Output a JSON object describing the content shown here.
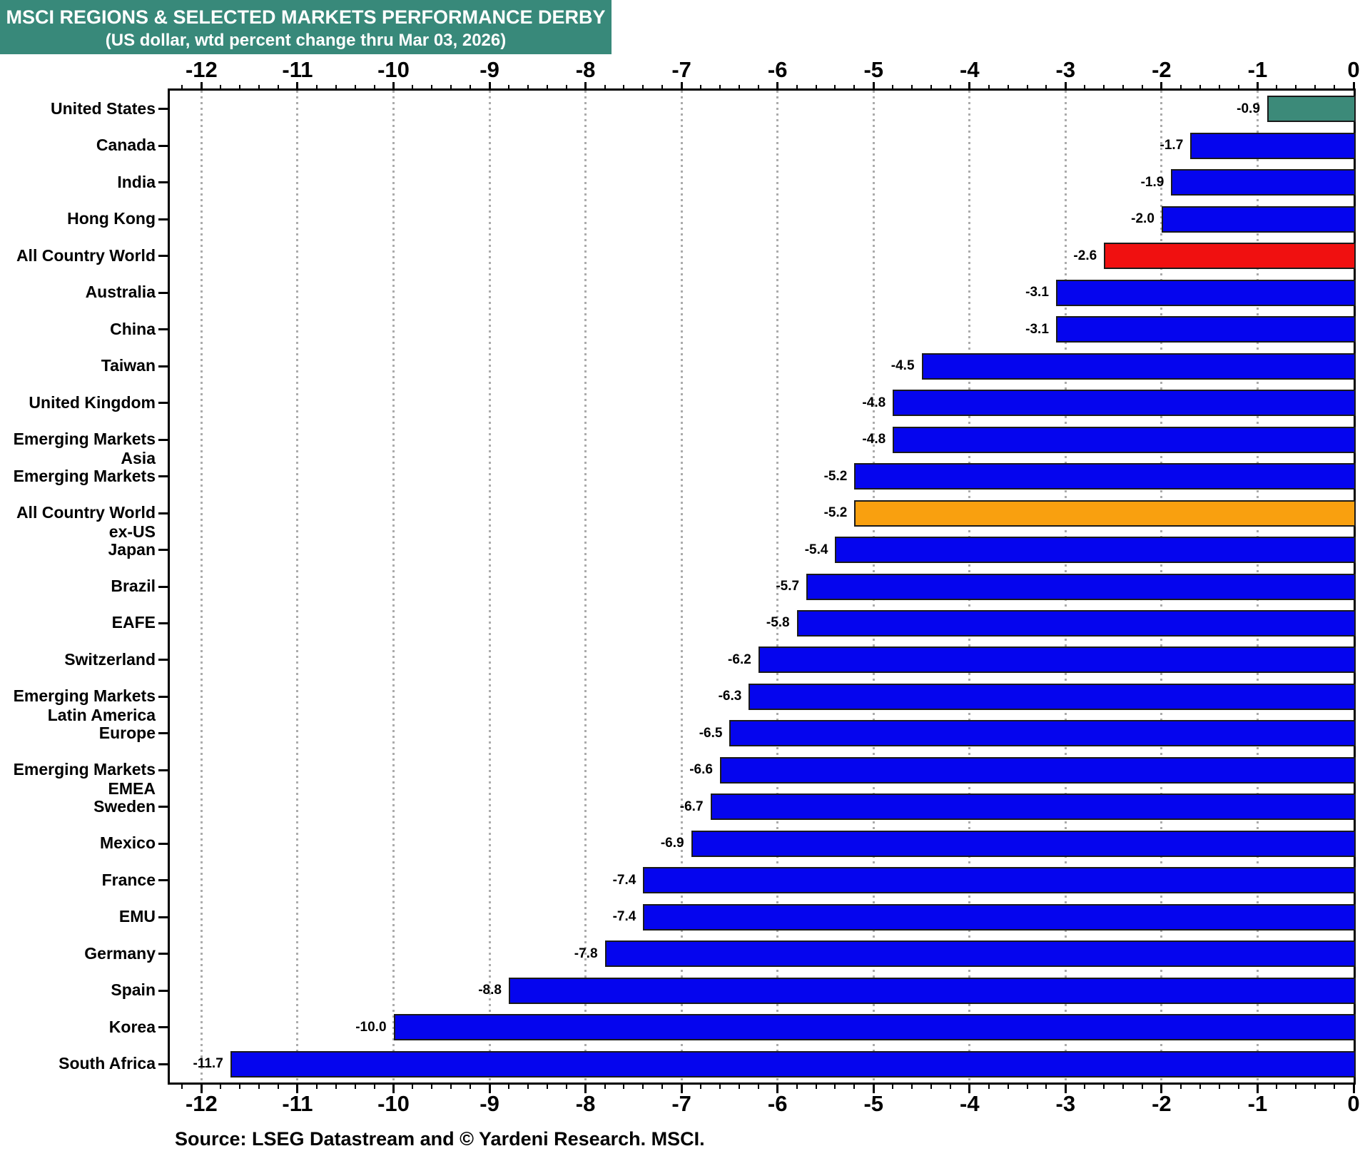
{
  "header": {
    "title": "MSCI REGIONS & SELECTED MARKETS PERFORMANCE DERBY",
    "subtitle": "(US dollar, wtd percent change thru Mar 03, 2026)"
  },
  "source_note": "Source: LSEG Datastream and © Yardeni Research. MSCI.",
  "colors": {
    "header_bg": "#38897A",
    "header_text": "#FFFFFF",
    "bar_default": "#0505EE",
    "bar_united_states": "#3C8A79",
    "bar_all_country_world": "#F01010",
    "bar_all_country_world_ex_us": "#F9A00F",
    "bar_border": "#1A1A1A",
    "gridline": "#ABABAB",
    "axis": "#000000",
    "text": "#000000"
  },
  "chart_data": {
    "type": "bar",
    "orientation": "horizontal",
    "title": "MSCI REGIONS & SELECTED MARKETS PERFORMANCE DERBY",
    "subtitle": "(US dollar, wtd percent change thru Mar 03, 2026)",
    "xlabel": "",
    "ylabel": "",
    "xlim": [
      -12.33,
      0
    ],
    "x_major_ticks": [
      -12,
      -11,
      -10,
      -9,
      -8,
      -7,
      -6,
      -5,
      -4,
      -3,
      -2,
      -1,
      0
    ],
    "x_tick_labels": [
      "-12",
      "-11",
      "-10",
      "-9",
      "-8",
      "-7",
      "-6",
      "-5",
      "-4",
      "-3",
      "-2",
      "-1",
      "0"
    ],
    "x_minor_tick_step": 0.2,
    "grid": "vertical dotted gridlines at integer ticks",
    "legend_position": "none",
    "bars": [
      {
        "category": "United States",
        "label_lines": [
          "United States"
        ],
        "value": -0.9,
        "value_label": "-0.9",
        "color_key": "bar_united_states"
      },
      {
        "category": "Canada",
        "label_lines": [
          "Canada"
        ],
        "value": -1.7,
        "value_label": "-1.7",
        "color_key": "bar_default"
      },
      {
        "category": "India",
        "label_lines": [
          "India"
        ],
        "value": -1.9,
        "value_label": "-1.9",
        "color_key": "bar_default"
      },
      {
        "category": "Hong Kong",
        "label_lines": [
          "Hong Kong"
        ],
        "value": -2.0,
        "value_label": "-2.0",
        "color_key": "bar_default"
      },
      {
        "category": "All Country World",
        "label_lines": [
          "All Country World"
        ],
        "value": -2.6,
        "value_label": "-2.6",
        "color_key": "bar_all_country_world"
      },
      {
        "category": "Australia",
        "label_lines": [
          "Australia"
        ],
        "value": -3.1,
        "value_label": "-3.1",
        "color_key": "bar_default"
      },
      {
        "category": "China",
        "label_lines": [
          "China"
        ],
        "value": -3.1,
        "value_label": "-3.1",
        "color_key": "bar_default"
      },
      {
        "category": "Taiwan",
        "label_lines": [
          "Taiwan"
        ],
        "value": -4.5,
        "value_label": "-4.5",
        "color_key": "bar_default"
      },
      {
        "category": "United Kingdom",
        "label_lines": [
          "United Kingdom"
        ],
        "value": -4.8,
        "value_label": "-4.8",
        "color_key": "bar_default"
      },
      {
        "category": "Emerging Markets Asia",
        "label_lines": [
          "Emerging Markets",
          "Asia"
        ],
        "value": -4.8,
        "value_label": "-4.8",
        "color_key": "bar_default"
      },
      {
        "category": "Emerging Markets",
        "label_lines": [
          "Emerging Markets"
        ],
        "value": -5.2,
        "value_label": "-5.2",
        "color_key": "bar_default"
      },
      {
        "category": "All Country World ex-US",
        "label_lines": [
          "All Country World",
          "ex-US"
        ],
        "value": -5.2,
        "value_label": "-5.2",
        "color_key": "bar_all_country_world_ex_us"
      },
      {
        "category": "Japan",
        "label_lines": [
          "Japan"
        ],
        "value": -5.4,
        "value_label": "-5.4",
        "color_key": "bar_default"
      },
      {
        "category": "Brazil",
        "label_lines": [
          "Brazil"
        ],
        "value": -5.7,
        "value_label": "-5.7",
        "color_key": "bar_default"
      },
      {
        "category": "EAFE",
        "label_lines": [
          "EAFE"
        ],
        "value": -5.8,
        "value_label": "-5.8",
        "color_key": "bar_default"
      },
      {
        "category": "Switzerland",
        "label_lines": [
          "Switzerland"
        ],
        "value": -6.2,
        "value_label": "-6.2",
        "color_key": "bar_default"
      },
      {
        "category": "Emerging Markets Latin America",
        "label_lines": [
          "Emerging Markets",
          "Latin America"
        ],
        "value": -6.3,
        "value_label": "-6.3",
        "color_key": "bar_default"
      },
      {
        "category": "Europe",
        "label_lines": [
          "Europe"
        ],
        "value": -6.5,
        "value_label": "-6.5",
        "color_key": "bar_default"
      },
      {
        "category": "Emerging Markets EMEA",
        "label_lines": [
          "Emerging Markets",
          "EMEA"
        ],
        "value": -6.6,
        "value_label": "-6.6",
        "color_key": "bar_default"
      },
      {
        "category": "Sweden",
        "label_lines": [
          "Sweden"
        ],
        "value": -6.7,
        "value_label": "-6.7",
        "color_key": "bar_default"
      },
      {
        "category": "Mexico",
        "label_lines": [
          "Mexico"
        ],
        "value": -6.9,
        "value_label": "-6.9",
        "color_key": "bar_default"
      },
      {
        "category": "France",
        "label_lines": [
          "France"
        ],
        "value": -7.4,
        "value_label": "-7.4",
        "color_key": "bar_default"
      },
      {
        "category": "EMU",
        "label_lines": [
          "EMU"
        ],
        "value": -7.4,
        "value_label": "-7.4",
        "color_key": "bar_default"
      },
      {
        "category": "Germany",
        "label_lines": [
          "Germany"
        ],
        "value": -7.8,
        "value_label": "-7.8",
        "color_key": "bar_default"
      },
      {
        "category": "Spain",
        "label_lines": [
          "Spain"
        ],
        "value": -8.8,
        "value_label": "-8.8",
        "color_key": "bar_default"
      },
      {
        "category": "Korea",
        "label_lines": [
          "Korea"
        ],
        "value": -10.0,
        "value_label": "-10.0",
        "color_key": "bar_default"
      },
      {
        "category": "South Africa",
        "label_lines": [
          "South Africa"
        ],
        "value": -11.7,
        "value_label": "-11.7",
        "color_key": "bar_default"
      }
    ]
  }
}
